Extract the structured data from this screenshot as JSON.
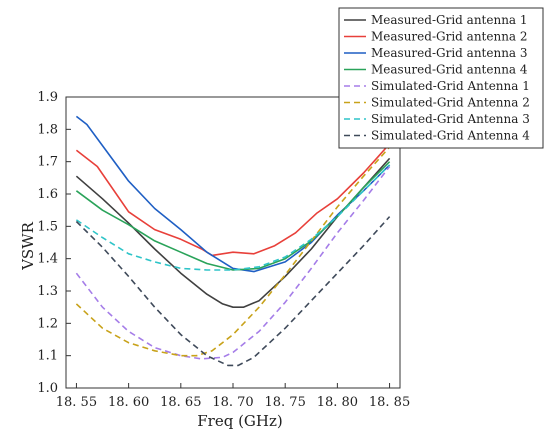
{
  "chart_data": {
    "type": "line",
    "title": "",
    "xlabel": "Freq (GHz)",
    "ylabel": "VSWR",
    "xlim": [
      18.54,
      18.86
    ],
    "ylim": [
      1.0,
      1.9
    ],
    "x_ticks": [
      18.55,
      18.6,
      18.65,
      18.7,
      18.75,
      18.8,
      18.85
    ],
    "x_tick_labels": [
      "18. 55",
      "18. 60",
      "18. 65",
      "18. 70",
      "18. 75",
      "18. 80",
      "18. 85"
    ],
    "y_ticks": [
      1.0,
      1.1,
      1.2,
      1.3,
      1.4,
      1.5,
      1.6,
      1.7,
      1.8,
      1.9
    ],
    "y_tick_labels": [
      "1.0",
      "1.1",
      "1.2",
      "1.3",
      "1.4",
      "1.5",
      "1.6",
      "1.7",
      "1.8",
      "1.9"
    ],
    "grid": false,
    "legend_position": "top-right",
    "series": [
      {
        "name": "Measured-Grid antenna 1",
        "color": "#404040",
        "dash": "solid",
        "x": [
          18.55,
          18.575,
          18.6,
          18.625,
          18.65,
          18.675,
          18.69,
          18.7,
          18.71,
          18.725,
          18.75,
          18.775,
          18.8,
          18.825,
          18.85
        ],
        "y": [
          1.655,
          1.585,
          1.51,
          1.43,
          1.355,
          1.29,
          1.26,
          1.25,
          1.25,
          1.27,
          1.345,
          1.43,
          1.53,
          1.62,
          1.71
        ]
      },
      {
        "name": "Measured-Grid antenna 2",
        "color": "#e8403a",
        "dash": "solid",
        "x": [
          18.55,
          18.57,
          18.6,
          18.625,
          18.65,
          18.67,
          18.68,
          18.7,
          18.72,
          18.74,
          18.76,
          18.78,
          18.8,
          18.825,
          18.85
        ],
        "y": [
          1.735,
          1.685,
          1.545,
          1.49,
          1.46,
          1.43,
          1.41,
          1.42,
          1.415,
          1.44,
          1.48,
          1.54,
          1.585,
          1.665,
          1.755
        ]
      },
      {
        "name": "Measured-Grid antenna 3",
        "color": "#1f5fc4",
        "dash": "solid",
        "x": [
          18.55,
          18.56,
          18.6,
          18.625,
          18.65,
          18.675,
          18.7,
          18.72,
          18.75,
          18.775,
          18.8,
          18.825,
          18.85
        ],
        "y": [
          1.84,
          1.815,
          1.64,
          1.555,
          1.49,
          1.42,
          1.37,
          1.36,
          1.39,
          1.45,
          1.535,
          1.61,
          1.69
        ]
      },
      {
        "name": "Measured-Grid antenna 4",
        "color": "#2aa35a",
        "dash": "solid",
        "x": [
          18.55,
          18.575,
          18.6,
          18.625,
          18.65,
          18.675,
          18.7,
          18.725,
          18.75,
          18.775,
          18.8,
          18.825,
          18.85
        ],
        "y": [
          1.61,
          1.55,
          1.505,
          1.455,
          1.42,
          1.385,
          1.365,
          1.37,
          1.4,
          1.455,
          1.53,
          1.62,
          1.7
        ]
      },
      {
        "name": "Simulated-Grid Antenna 1",
        "color": "#a57de8",
        "dash": "dashed",
        "x": [
          18.55,
          18.575,
          18.6,
          18.625,
          18.65,
          18.67,
          18.69,
          18.7,
          18.725,
          18.75,
          18.775,
          18.8,
          18.825,
          18.85
        ],
        "y": [
          1.355,
          1.25,
          1.175,
          1.125,
          1.1,
          1.09,
          1.095,
          1.11,
          1.175,
          1.265,
          1.37,
          1.48,
          1.58,
          1.685
        ]
      },
      {
        "name": "Simulated-Grid Antenna 2",
        "color": "#c8a21a",
        "dash": "dashed",
        "x": [
          18.55,
          18.575,
          18.6,
          18.625,
          18.65,
          18.665,
          18.68,
          18.7,
          18.725,
          18.75,
          18.775,
          18.8,
          18.825,
          18.85
        ],
        "y": [
          1.26,
          1.185,
          1.14,
          1.115,
          1.1,
          1.1,
          1.115,
          1.165,
          1.25,
          1.35,
          1.455,
          1.56,
          1.655,
          1.745
        ]
      },
      {
        "name": "Simulated-Grid Antenna 3",
        "color": "#2ec4c8",
        "dash": "dashed",
        "x": [
          18.55,
          18.575,
          18.6,
          18.625,
          18.65,
          18.675,
          18.7,
          18.725,
          18.75,
          18.775,
          18.8,
          18.825,
          18.85
        ],
        "y": [
          1.52,
          1.465,
          1.415,
          1.39,
          1.37,
          1.365,
          1.365,
          1.375,
          1.405,
          1.46,
          1.53,
          1.61,
          1.69
        ]
      },
      {
        "name": "Simulated-Grid Antenna 4",
        "color": "#3f4a5a",
        "dash": "dashed",
        "x": [
          18.55,
          18.575,
          18.6,
          18.625,
          18.65,
          18.675,
          18.695,
          18.705,
          18.72,
          18.75,
          18.775,
          18.8,
          18.825,
          18.85
        ],
        "y": [
          1.515,
          1.435,
          1.345,
          1.25,
          1.165,
          1.1,
          1.07,
          1.07,
          1.095,
          1.185,
          1.27,
          1.355,
          1.44,
          1.53
        ]
      }
    ]
  }
}
